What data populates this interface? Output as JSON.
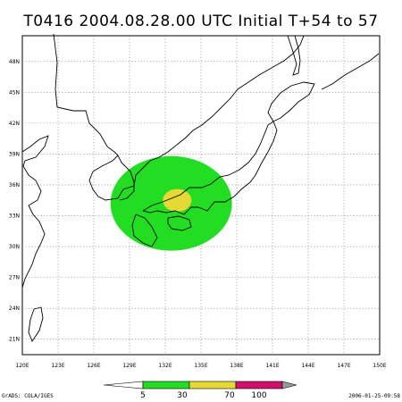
{
  "title": "T0416  2004.08.28.00  UTC  Initial  T+54  to  57",
  "map": {
    "lon_range": [
      120,
      150
    ],
    "lat_range": [
      19.5,
      50.5
    ],
    "lon_ticks": [
      "120E",
      "123E",
      "126E",
      "129E",
      "132E",
      "135E",
      "138E",
      "141E",
      "144E",
      "147E",
      "150E"
    ],
    "lat_ticks": [
      "48N",
      "45N",
      "42N",
      "39N",
      "36N",
      "33N",
      "30N",
      "27N",
      "24N",
      "21N"
    ],
    "probability_areas": [
      {
        "level": "5-30",
        "color": "#22dd22",
        "center_lon": 132.5,
        "center_lat": 34.2,
        "radius_lon": 5.1,
        "radius_lat": 4.6
      },
      {
        "level": "30-70",
        "color": "#e6d935",
        "center_lon": 133.0,
        "center_lat": 34.5,
        "radius_lon": 1.2,
        "radius_lat": 1.1
      }
    ]
  },
  "legend": {
    "labels": [
      "5",
      "30",
      "70",
      "100"
    ],
    "colors": [
      "#22dd22",
      "#e6d935",
      "#d0106a",
      "#999999"
    ]
  },
  "footer": {
    "left": "GrADS: COLA/IGES",
    "right": "2006-01-25-09:58"
  }
}
